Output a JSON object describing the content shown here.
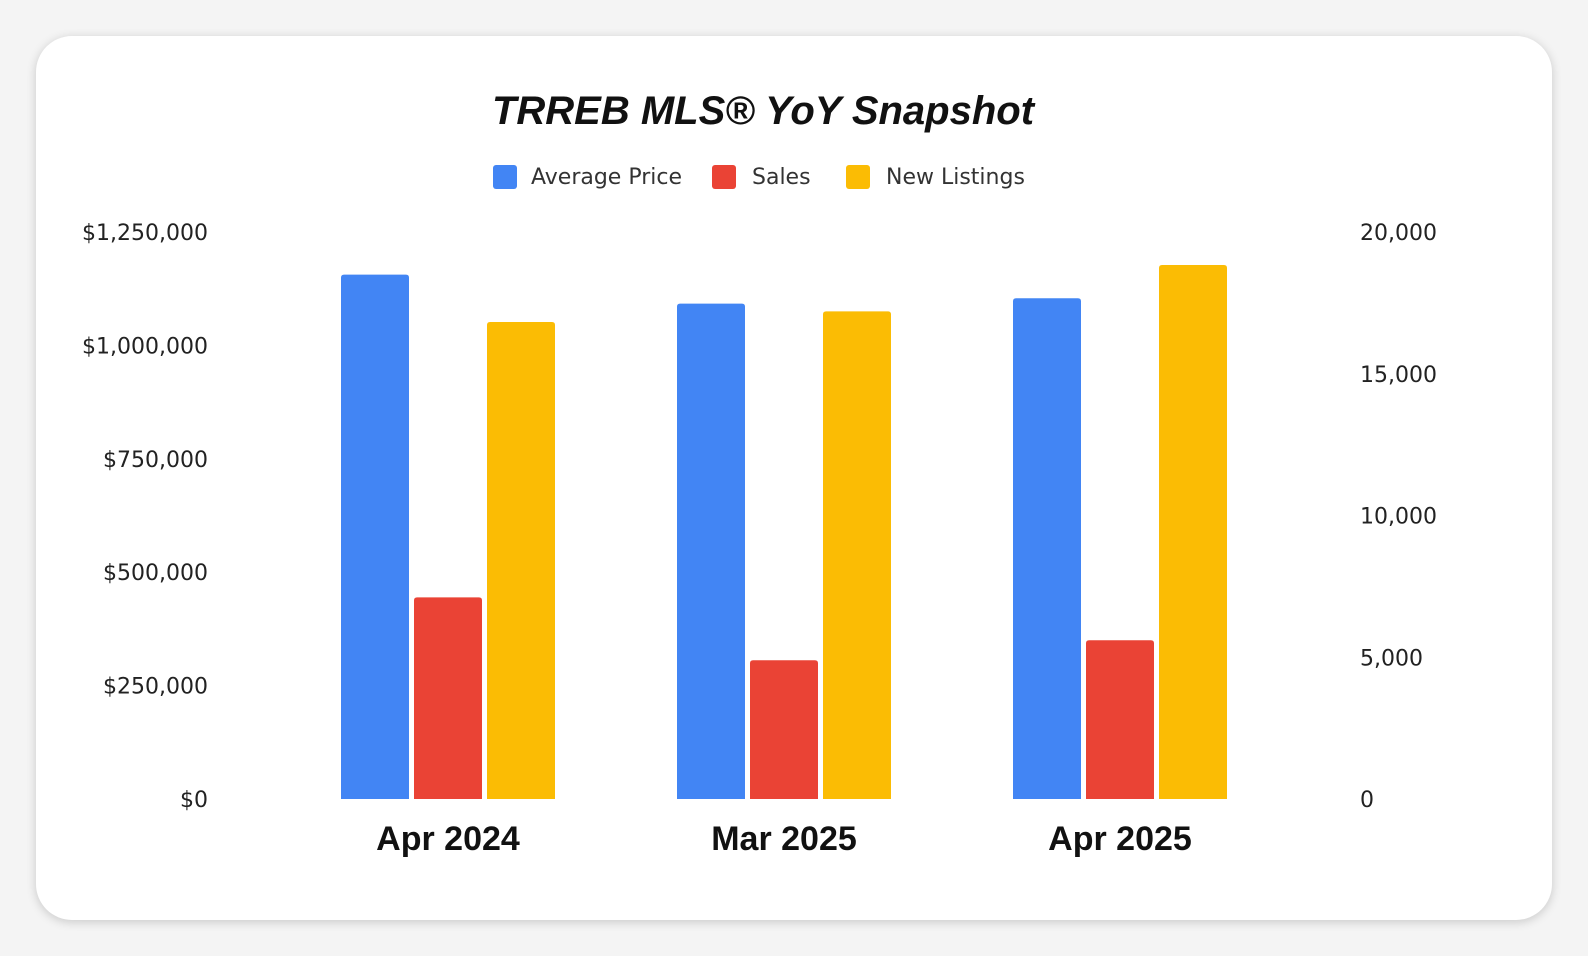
{
  "chart_data": {
    "type": "bar",
    "title": "TRREB MLS® YoY Snapshot",
    "categories": [
      "Apr 2024",
      "Mar 2025",
      "Apr 2025"
    ],
    "series": [
      {
        "name": "Average Price",
        "color": "#4285f4",
        "axis": "left",
        "values": [
          1156000,
          1092000,
          1104000
        ]
      },
      {
        "name": "Sales",
        "color": "#ea4335",
        "axis": "right",
        "values": [
          7114,
          4894,
          5601
        ]
      },
      {
        "name": "New Listings",
        "color": "#fbbc04",
        "axis": "right",
        "values": [
          16826,
          17198,
          18836
        ]
      }
    ],
    "y_left": {
      "min": 0,
      "max": 1250000,
      "ticks": [
        "$0",
        "$250,000",
        "$500,000",
        "$750,000",
        "$1,000,000",
        "$1,250,000"
      ]
    },
    "y_right": {
      "min": 0,
      "max": 20000,
      "ticks": [
        "0",
        "5,000",
        "10,000",
        "15,000",
        "20,000"
      ]
    },
    "legend_position": "top",
    "grid": false
  }
}
